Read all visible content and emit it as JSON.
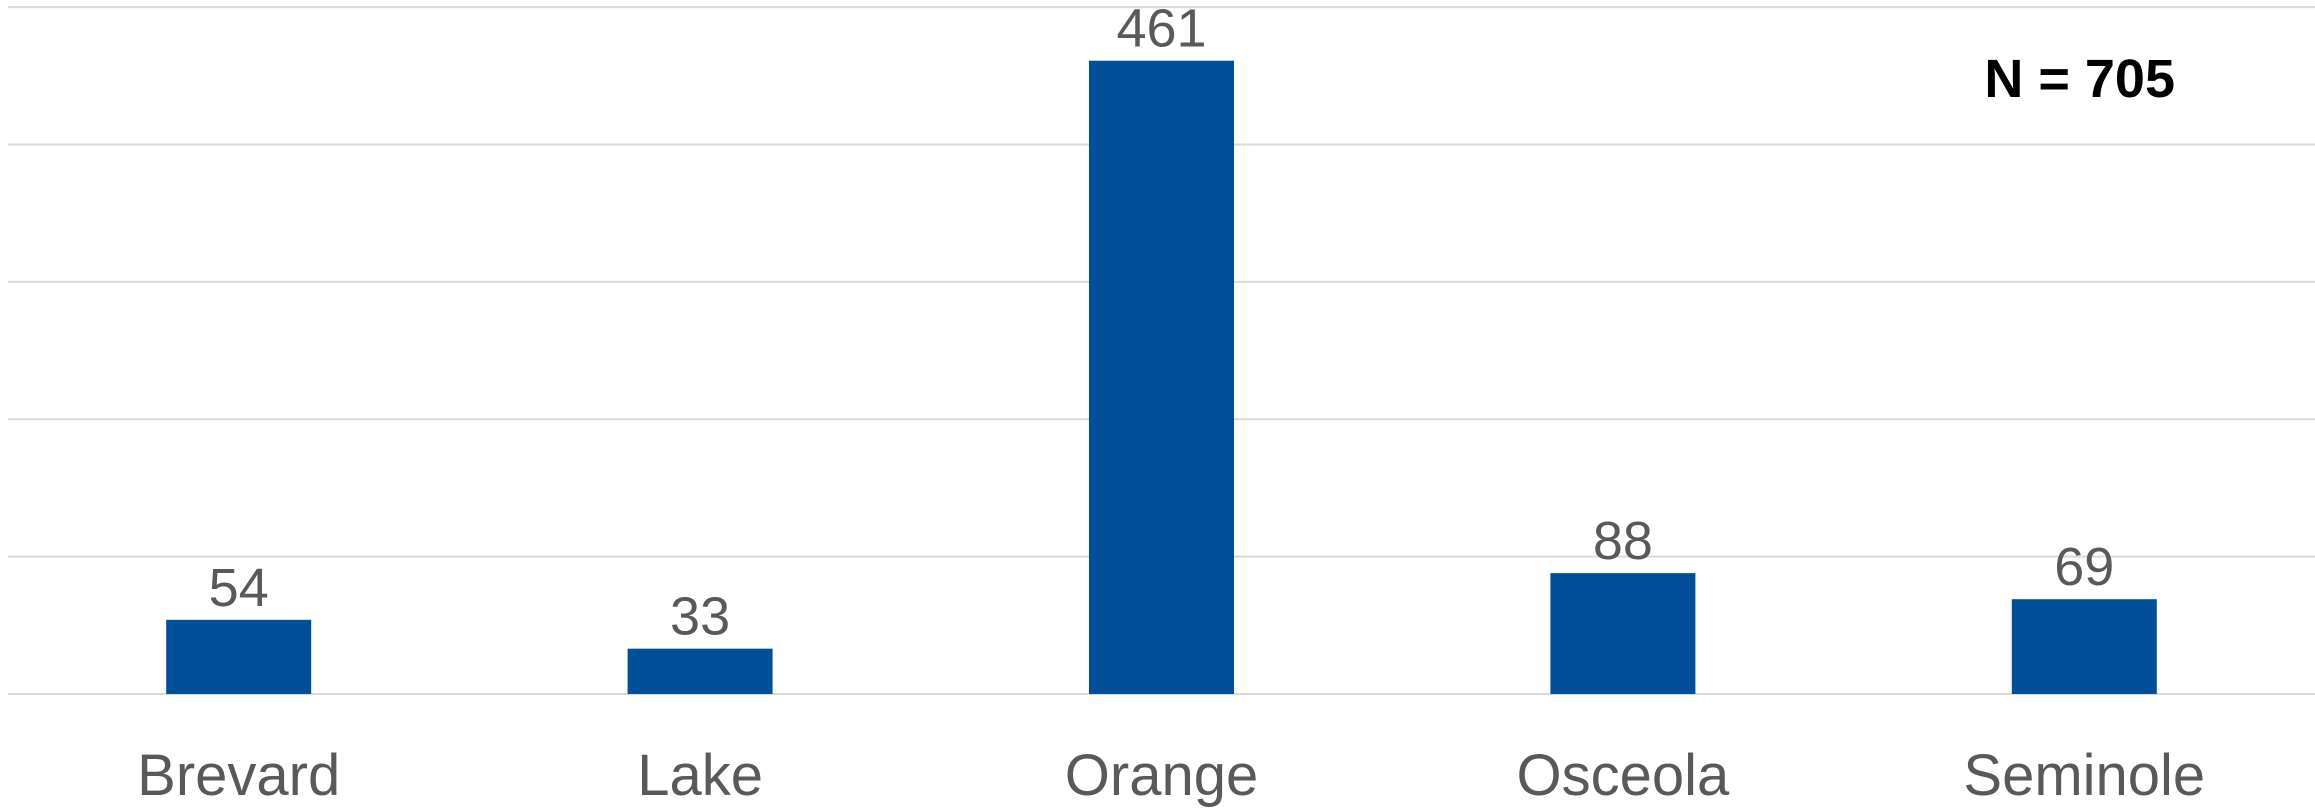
{
  "chart_data": {
    "type": "bar",
    "title": "",
    "xlabel": "",
    "ylabel": "",
    "categories": [
      "Brevard",
      "Lake",
      "Orange",
      "Osceola",
      "Seminole"
    ],
    "values": [
      54,
      33,
      461,
      88,
      69
    ],
    "data_labels": [
      "54",
      "33",
      "461",
      "88",
      "69"
    ],
    "annotation": "N = 705",
    "ylim": [
      0,
      500
    ],
    "gridline_step": 100,
    "grid": true,
    "legend": "none",
    "bar_color": "#004f98"
  }
}
